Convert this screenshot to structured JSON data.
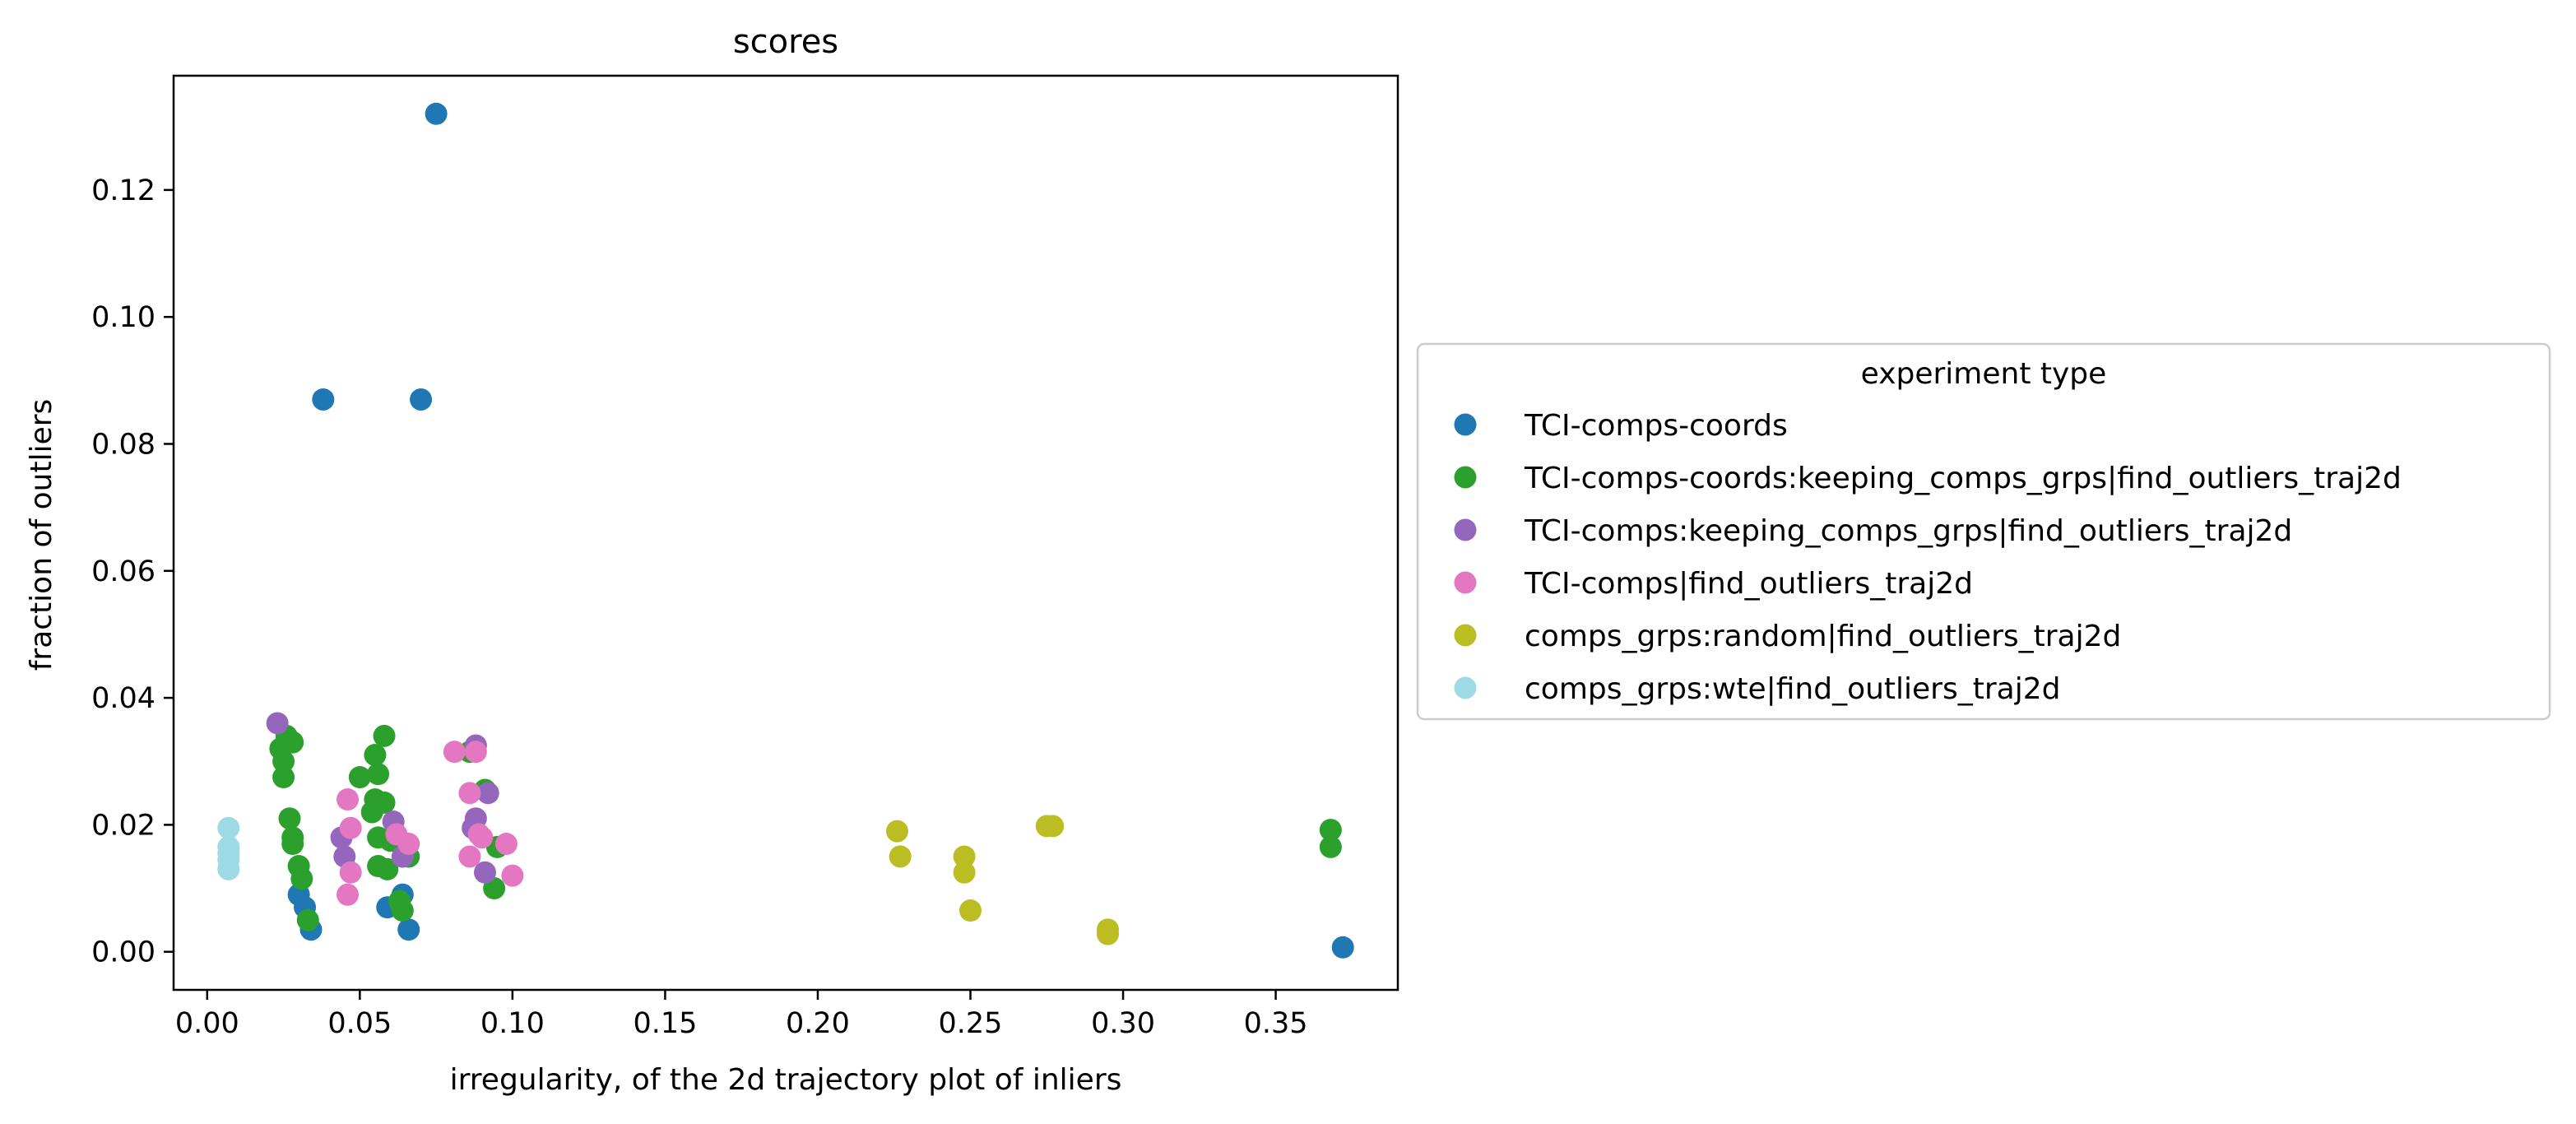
{
  "chart_data": {
    "type": "scatter",
    "title": "scores",
    "xlabel": "irregularity, of the 2d trajectory plot of inliers",
    "ylabel": "fraction of outliers",
    "xlim": [
      -0.011,
      0.39
    ],
    "ylim": [
      -0.006,
      0.138
    ],
    "xticks": [
      0.0,
      0.05,
      0.1,
      0.15,
      0.2,
      0.25,
      0.3,
      0.35
    ],
    "xtick_labels": [
      "0.00",
      "0.05",
      "0.10",
      "0.15",
      "0.20",
      "0.25",
      "0.30",
      "0.35"
    ],
    "yticks": [
      0.0,
      0.02,
      0.04,
      0.06,
      0.08,
      0.1,
      0.12
    ],
    "ytick_labels": [
      "0.00",
      "0.02",
      "0.04",
      "0.06",
      "0.08",
      "0.10",
      "0.12"
    ],
    "grid": false,
    "legend": {
      "title": "experiment type",
      "placement": "outside-right"
    },
    "series": [
      {
        "name": "TCI-comps-coords",
        "color": "#1f77b4",
        "points": [
          [
            0.075,
            0.132
          ],
          [
            0.038,
            0.087
          ],
          [
            0.07,
            0.087
          ],
          [
            0.03,
            0.009
          ],
          [
            0.032,
            0.007
          ],
          [
            0.034,
            0.0035
          ],
          [
            0.059,
            0.007
          ],
          [
            0.064,
            0.009
          ],
          [
            0.066,
            0.0035
          ],
          [
            0.372,
            0.0007
          ]
        ]
      },
      {
        "name": "TCI-comps-coords:keeping_comps_grps|find_outliers_traj2d",
        "color": "#2ca02c",
        "points": [
          [
            0.024,
            0.032
          ],
          [
            0.025,
            0.03
          ],
          [
            0.026,
            0.034
          ],
          [
            0.028,
            0.033
          ],
          [
            0.025,
            0.0275
          ],
          [
            0.027,
            0.021
          ],
          [
            0.028,
            0.018
          ],
          [
            0.028,
            0.017
          ],
          [
            0.03,
            0.0135
          ],
          [
            0.031,
            0.0115
          ],
          [
            0.033,
            0.005
          ],
          [
            0.05,
            0.0275
          ],
          [
            0.055,
            0.031
          ],
          [
            0.056,
            0.028
          ],
          [
            0.058,
            0.034
          ],
          [
            0.055,
            0.024
          ],
          [
            0.058,
            0.0235
          ],
          [
            0.054,
            0.022
          ],
          [
            0.056,
            0.018
          ],
          [
            0.06,
            0.0175
          ],
          [
            0.056,
            0.0135
          ],
          [
            0.059,
            0.013
          ],
          [
            0.063,
            0.008
          ],
          [
            0.064,
            0.0065
          ],
          [
            0.066,
            0.015
          ],
          [
            0.086,
            0.0315
          ],
          [
            0.091,
            0.0255
          ],
          [
            0.095,
            0.0165
          ],
          [
            0.094,
            0.01
          ],
          [
            0.368,
            0.0192
          ],
          [
            0.368,
            0.0165
          ]
        ]
      },
      {
        "name": "TCI-comps:keeping_comps_grps|find_outliers_traj2d",
        "color": "#9467bd",
        "points": [
          [
            0.023,
            0.036
          ],
          [
            0.044,
            0.018
          ],
          [
            0.045,
            0.015
          ],
          [
            0.061,
            0.0205
          ],
          [
            0.064,
            0.015
          ],
          [
            0.088,
            0.0325
          ],
          [
            0.088,
            0.021
          ],
          [
            0.092,
            0.025
          ],
          [
            0.091,
            0.0125
          ],
          [
            0.087,
            0.0195
          ]
        ]
      },
      {
        "name": "TCI-comps|find_outliers_traj2d",
        "color": "#e377c2",
        "points": [
          [
            0.046,
            0.024
          ],
          [
            0.047,
            0.0195
          ],
          [
            0.047,
            0.0125
          ],
          [
            0.046,
            0.009
          ],
          [
            0.062,
            0.0185
          ],
          [
            0.066,
            0.017
          ],
          [
            0.081,
            0.0315
          ],
          [
            0.088,
            0.0315
          ],
          [
            0.086,
            0.025
          ],
          [
            0.09,
            0.018
          ],
          [
            0.086,
            0.015
          ],
          [
            0.098,
            0.017
          ],
          [
            0.1,
            0.012
          ],
          [
            0.089,
            0.0185
          ]
        ]
      },
      {
        "name": "comps_grps:random|find_outliers_traj2d",
        "color": "#bcbd22",
        "points": [
          [
            0.226,
            0.019
          ],
          [
            0.227,
            0.015
          ],
          [
            0.248,
            0.015
          ],
          [
            0.248,
            0.0125
          ],
          [
            0.25,
            0.0065
          ],
          [
            0.275,
            0.0198
          ],
          [
            0.277,
            0.0198
          ],
          [
            0.295,
            0.0035
          ],
          [
            0.295,
            0.0028
          ]
        ]
      },
      {
        "name": "comps_grps:wte|find_outliers_traj2d",
        "color": "#9edae5",
        "points": [
          [
            0.007,
            0.0195
          ],
          [
            0.007,
            0.0165
          ],
          [
            0.007,
            0.0155
          ],
          [
            0.007,
            0.0145
          ],
          [
            0.007,
            0.013
          ]
        ]
      }
    ]
  }
}
